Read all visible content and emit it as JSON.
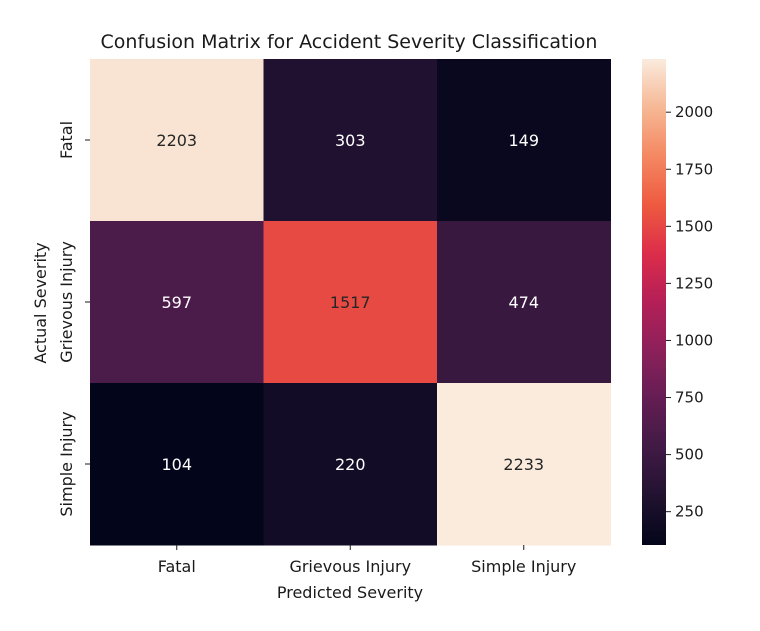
{
  "chart_data": {
    "type": "heatmap",
    "title": "Confusion Matrix for Accident Severity Classification",
    "xlabel": "Predicted Severity",
    "ylabel": "Actual Severity",
    "x_categories": [
      "Fatal",
      "Grievous Injury",
      "Simple Injury"
    ],
    "y_categories": [
      "Fatal",
      "Grievous Injury",
      "Simple Injury"
    ],
    "values": [
      [
        2203,
        303,
        149
      ],
      [
        597,
        1517,
        474
      ],
      [
        104,
        220,
        2233
      ]
    ],
    "colorbar": {
      "range": [
        104,
        2233
      ],
      "ticks": [
        250,
        500,
        750,
        1000,
        1250,
        1500,
        1750,
        2000
      ],
      "colormap": "rocket"
    },
    "grid": false,
    "legend": "colorbar-right"
  }
}
